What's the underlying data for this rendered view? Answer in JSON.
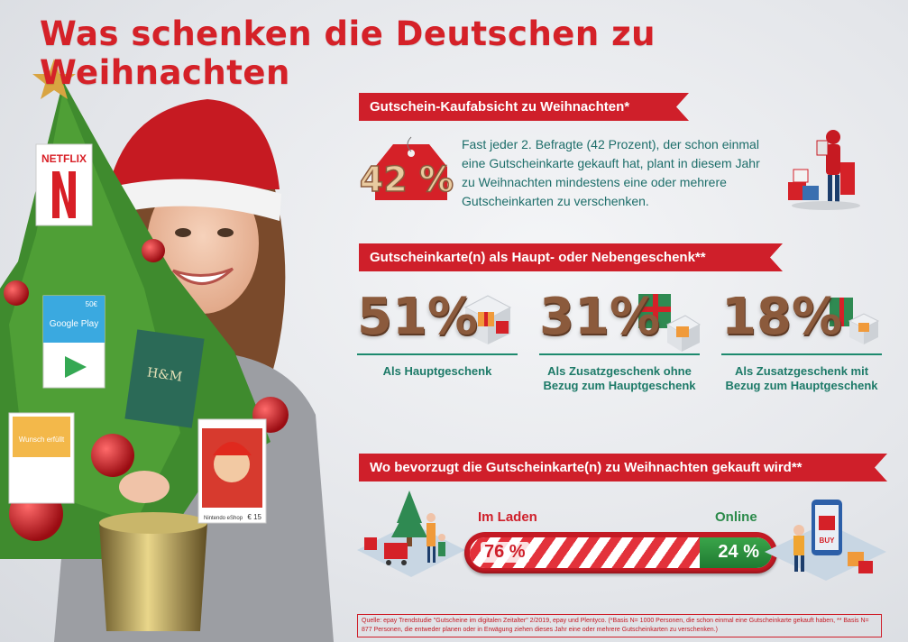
{
  "title": "Was schenken die Deutschen zu Weihnachten",
  "section1": {
    "heading": "Gutschein-Kaufabsicht zu Weihnachten*",
    "tag_value": "42 %",
    "text": "Fast jeder 2. Befragte (42 Prozent), der schon einmal eine Gutscheinkarte gekauft hat, plant in diesem Jahr zu Weihnachten mindestens eine oder mehrere Gutscheinkarten zu verschenken."
  },
  "section2": {
    "heading": "Gutscheinkarte(n) als Haupt- oder Nebengeschenk**",
    "stats": [
      {
        "value": "51%",
        "label": "Als Hauptgeschenk"
      },
      {
        "value": "31%",
        "label": "Als Zusatzgeschenk ohne Bezug zum Hauptgeschenk"
      },
      {
        "value": "18%",
        "label": "Als Zusatzgeschenk mit Bezug zum Hauptgeschenk"
      }
    ]
  },
  "section3": {
    "heading": "Wo bevorzugt die Gutscheinkarte(n) zu Weihnachten gekauft wird**",
    "store_label": "Im Laden",
    "online_label": "Online",
    "store_pct": "76 %",
    "online_pct": "24 %",
    "store_share": 0.76
  },
  "cards": {
    "netflix": "NETFLIX",
    "google_play": "Google Play",
    "google_value": "50€",
    "hm": "H&M",
    "nintendo": "Nintendo eShop",
    "nintendo_value": "€ 15",
    "wunsch": "Wunsch erfüllt"
  },
  "colors": {
    "red": "#cf1f2a",
    "teal": "#1d6e6a",
    "green": "#2b8a4a",
    "brown": "#8b5a3c"
  },
  "source": "Quelle: epay Trendstudie \"Gutscheine im digitalen Zeitalter\" 2/2019, epay und Plentyco. (*Basis N= 1000 Personen, die schon einmal eine Gutscheinkarte gekauft haben, ** Basis N= 877 Personen, die entweder planen oder in Erwägung ziehen dieses Jahr eine oder mehrere Gutscheinkarten zu verschenken.)"
}
